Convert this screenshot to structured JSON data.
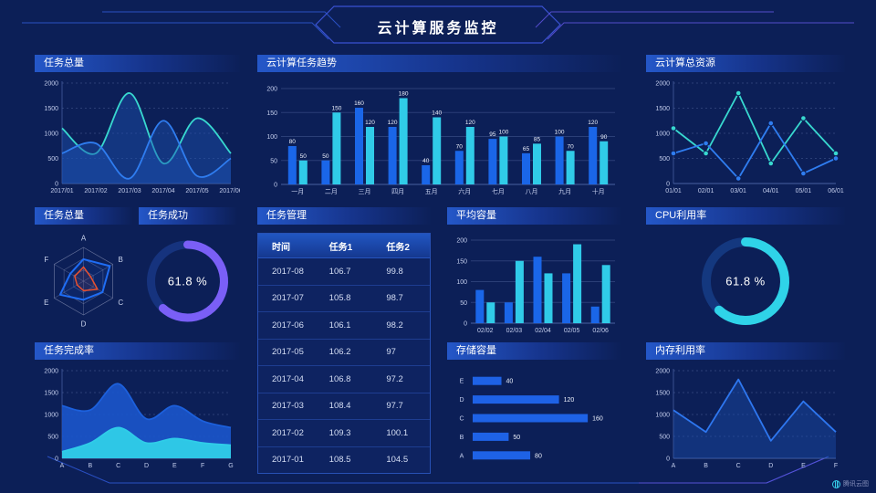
{
  "header": {
    "title": "云计算服务监控"
  },
  "watermark": {
    "label": "腾讯云图"
  },
  "panels": {
    "task_total_line": {
      "title": "任务总量"
    },
    "cloud_task_trend": {
      "title": "云计算任务趋势"
    },
    "cloud_total_resource": {
      "title": "云计算总资源"
    },
    "task_total_radar": {
      "title": "任务总量"
    },
    "task_success": {
      "title": "任务成功"
    },
    "task_management": {
      "title": "任务管理"
    },
    "avg_capacity": {
      "title": "平均容量"
    },
    "cpu_usage": {
      "title": "CPU利用率"
    },
    "task_completion": {
      "title": "任务完成率"
    },
    "storage_capacity": {
      "title": "存储容量"
    },
    "memory_usage": {
      "title": "内存利用率"
    }
  },
  "table": {
    "headers": [
      "时间",
      "任务1",
      "任务2"
    ],
    "rows": [
      [
        "2017-08",
        "106.7",
        "99.8"
      ],
      [
        "2017-07",
        "105.8",
        "98.7"
      ],
      [
        "2017-06",
        "106.1",
        "98.2"
      ],
      [
        "2017-05",
        "106.2",
        "97"
      ],
      [
        "2017-04",
        "106.8",
        "97.2"
      ],
      [
        "2017-03",
        "108.4",
        "97.7"
      ],
      [
        "2017-02",
        "109.3",
        "100.1"
      ],
      [
        "2017-01",
        "108.5",
        "104.5"
      ]
    ]
  },
  "colors": {
    "background": "#0c1f57",
    "blue": "#1a66e8",
    "cyan": "#30cbe8",
    "teal": "#38d8cf",
    "purple": "#7a5ff6",
    "red": "#e8502f",
    "frame": "#2e55cf"
  },
  "chart_data": [
    {
      "container": "c1",
      "type": "line",
      "title": "任务总量",
      "smooth": true,
      "dash": true,
      "x": [
        "2017/01",
        "2017/02",
        "2017/03",
        "2017/04",
        "2017/05",
        "2017/06"
      ],
      "ylim": [
        0,
        2000
      ],
      "yticks": [
        0,
        500,
        1000,
        1500,
        2000
      ],
      "series": [
        {
          "name": "series-teal",
          "color": "#38d8cf",
          "values": [
            1100,
            600,
            1800,
            400,
            1300,
            600
          ],
          "fill": "#1c52b4",
          "fillOpacity": 0.45
        },
        {
          "name": "series-blue",
          "color": "#2f7df0",
          "values": [
            600,
            800,
            100,
            1250,
            150,
            500
          ],
          "fill": "#1c52b4",
          "fillOpacity": 0.45
        }
      ]
    },
    {
      "container": "c2",
      "type": "bar",
      "title": "云计算任务趋势",
      "labels": true,
      "categories": [
        "一月",
        "二月",
        "三月",
        "四月",
        "五月",
        "六月",
        "七月",
        "八月",
        "九月",
        "十月"
      ],
      "ylim": [
        0,
        200
      ],
      "yticks": [
        0,
        50,
        100,
        150,
        200
      ],
      "series": [
        {
          "name": "任务1",
          "color": "#1a66e8",
          "values": [
            80,
            50,
            160,
            120,
            40,
            70,
            95,
            65,
            100,
            120
          ]
        },
        {
          "name": "任务2",
          "color": "#30cbe8",
          "values": [
            50,
            150,
            120,
            180,
            140,
            120,
            100,
            85,
            70,
            90
          ]
        }
      ]
    },
    {
      "container": "c3",
      "type": "line",
      "title": "云计算总资源",
      "smooth": false,
      "markers": true,
      "dash": true,
      "x": [
        "01/01",
        "02/01",
        "03/01",
        "04/01",
        "05/01",
        "06/01"
      ],
      "ylim": [
        0,
        2000
      ],
      "yticks": [
        0,
        500,
        1000,
        1500,
        2000
      ],
      "series": [
        {
          "name": "series-teal",
          "color": "#38d8cf",
          "values": [
            1100,
            600,
            1800,
            400,
            1300,
            600
          ]
        },
        {
          "name": "series-blue",
          "color": "#2f7df0",
          "values": [
            600,
            800,
            100,
            1200,
            200,
            500
          ]
        }
      ]
    },
    {
      "container": "c4",
      "type": "radar",
      "title": "任务总量",
      "axes": [
        "A",
        "B",
        "C",
        "D",
        "E",
        "F"
      ],
      "max": 100,
      "series": [
        {
          "name": "blue",
          "color": "#1f6df5",
          "values": [
            65,
            90,
            65,
            55,
            80,
            45
          ]
        },
        {
          "name": "red",
          "color": "#e8502f",
          "values": [
            42,
            25,
            48,
            28,
            22,
            30
          ]
        }
      ]
    },
    {
      "container": "c5",
      "type": "donut",
      "title": "任务成功",
      "value": 61.8,
      "display": "61.8 %",
      "color": "#7a5ff6",
      "track": "#16337e",
      "r": 40,
      "sw": 9
    },
    {
      "container": "c7",
      "type": "bar",
      "title": "平均容量",
      "labels": false,
      "categories": [
        "02/02",
        "02/03",
        "02/04",
        "02/05",
        "02/06"
      ],
      "ylim": [
        0,
        200
      ],
      "yticks": [
        0,
        50,
        100,
        150,
        200
      ],
      "series": [
        {
          "name": "series-blue",
          "color": "#1a66e8",
          "values": [
            80,
            50,
            160,
            120,
            40
          ]
        },
        {
          "name": "series-cyan",
          "color": "#30cbe8",
          "values": [
            50,
            150,
            120,
            190,
            140
          ]
        }
      ]
    },
    {
      "container": "c8",
      "type": "donut",
      "title": "CPU利用率",
      "value": 61.8,
      "display": "61.8 %",
      "color": "#2fd3e8",
      "track": "#14387f",
      "r": 43,
      "sw": 10
    },
    {
      "container": "c9",
      "type": "line",
      "title": "任务完成率",
      "smooth": true,
      "dash": true,
      "x": [
        "A",
        "B",
        "C",
        "D",
        "E",
        "F",
        "G"
      ],
      "ylim": [
        0,
        2000
      ],
      "yticks": [
        0,
        500,
        1000,
        1500,
        2000
      ],
      "series": [
        {
          "name": "blue-area",
          "color": "#1c60dc",
          "values": [
            1200,
            1100,
            1700,
            900,
            1200,
            850,
            700
          ],
          "fill": "#1b55cc",
          "fillOpacity": 0.9
        },
        {
          "name": "cyan-area",
          "color": "#2fcde8",
          "values": [
            150,
            350,
            700,
            350,
            450,
            350,
            300
          ],
          "fill": "#2fcde8",
          "fillOpacity": 0.95
        }
      ]
    },
    {
      "container": "c10",
      "type": "hbar",
      "title": "存储容量",
      "categories": [
        "A",
        "B",
        "C",
        "D",
        "E"
      ],
      "values": [
        80,
        50,
        160,
        120,
        40
      ],
      "xmax": 170,
      "color": "#1e62e6"
    },
    {
      "container": "c11",
      "type": "line",
      "title": "内存利用率",
      "smooth": false,
      "dash": true,
      "x": [
        "A",
        "B",
        "C",
        "D",
        "E",
        "F"
      ],
      "ylim": [
        0,
        2000
      ],
      "yticks": [
        0,
        500,
        1000,
        1500,
        2000
      ],
      "series": [
        {
          "name": "blue",
          "color": "#2e77f0",
          "values": [
            1100,
            600,
            1800,
            400,
            1300,
            600
          ],
          "fill": "#1c52b4",
          "fillOpacity": 0.4
        }
      ]
    }
  ]
}
